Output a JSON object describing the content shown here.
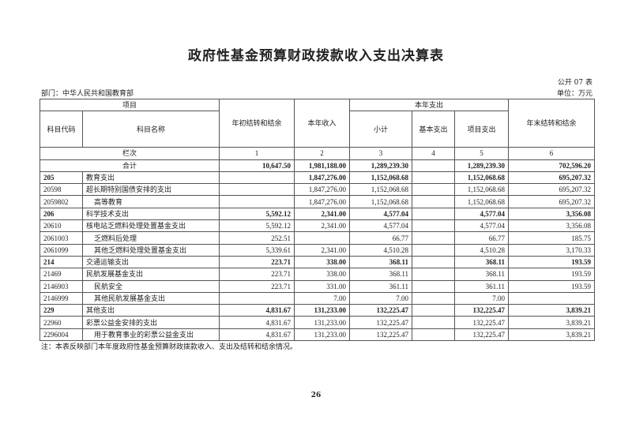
{
  "title": "政府性基金预算财政拨款收入支出决算表",
  "table_no": "公开 07 表",
  "department": "部门：中华人民共和国教育部",
  "unit": "单位：万元",
  "headers": {
    "item": "项目",
    "code": "科目代码",
    "name": "科目名称",
    "col1": "年初结转和结余",
    "col2": "本年收入",
    "expense": "本年支出",
    "col3": "小计",
    "col4": "基本支出",
    "col5": "项目支出",
    "col6": "年末结转和结余"
  },
  "column_numbers": {
    "label": "栏次",
    "nums": [
      "1",
      "2",
      "3",
      "4",
      "5",
      "6"
    ]
  },
  "total": {
    "label": "合计",
    "values": [
      "10,647.50",
      "1,981,188.00",
      "1,289,239.30",
      "",
      "1,289,239.30",
      "702,596.20"
    ]
  },
  "rows": [
    {
      "code": "205",
      "name": "教育支出",
      "level": 1,
      "values": [
        "",
        "1,847,276.00",
        "1,152,068.68",
        "",
        "1,152,068.68",
        "695,207.32"
      ]
    },
    {
      "code": "20598",
      "name": "超长期特别国债安排的支出",
      "level": 2,
      "values": [
        "",
        "1,847,276.00",
        "1,152,068.68",
        "",
        "1,152,068.68",
        "695,207.32"
      ]
    },
    {
      "code": "2059802",
      "name": "高等教育",
      "level": 3,
      "values": [
        "",
        "1,847,276.00",
        "1,152,068.68",
        "",
        "1,152,068.68",
        "695,207.32"
      ]
    },
    {
      "code": "206",
      "name": "科学技术支出",
      "level": 1,
      "values": [
        "5,592.12",
        "2,341.00",
        "4,577.04",
        "",
        "4,577.04",
        "3,356.08"
      ]
    },
    {
      "code": "20610",
      "name": "核电站乏燃料处理处置基金支出",
      "level": 2,
      "values": [
        "5,592.12",
        "2,341.00",
        "4,577.04",
        "",
        "4,577.04",
        "3,356.08"
      ]
    },
    {
      "code": "2061003",
      "name": "乏燃料后处理",
      "level": 3,
      "values": [
        "252.51",
        "",
        "66.77",
        "",
        "66.77",
        "185.75"
      ]
    },
    {
      "code": "2061099",
      "name": "其他乏燃料处理处置基金支出",
      "level": 3,
      "values": [
        "5,339.61",
        "2,341.00",
        "4,510.28",
        "",
        "4,510.28",
        "3,170.33"
      ]
    },
    {
      "code": "214",
      "name": "交通运输支出",
      "level": 1,
      "values": [
        "223.71",
        "338.00",
        "368.11",
        "",
        "368.11",
        "193.59"
      ]
    },
    {
      "code": "21469",
      "name": "民航发展基金支出",
      "level": 2,
      "values": [
        "223.71",
        "338.00",
        "368.11",
        "",
        "368.11",
        "193.59"
      ]
    },
    {
      "code": "2146903",
      "name": "民航安全",
      "level": 3,
      "values": [
        "223.71",
        "331.00",
        "361.11",
        "",
        "361.11",
        "193.59"
      ]
    },
    {
      "code": "2146999",
      "name": "其他民航发展基金支出",
      "level": 3,
      "values": [
        "",
        "7.00",
        "7.00",
        "",
        "7.00",
        ""
      ]
    },
    {
      "code": "229",
      "name": "其他支出",
      "level": 1,
      "values": [
        "4,831.67",
        "131,233.00",
        "132,225.47",
        "",
        "132,225.47",
        "3,839.21"
      ]
    },
    {
      "code": "22960",
      "name": "彩票公益金安排的支出",
      "level": 2,
      "values": [
        "4,831.67",
        "131,233.00",
        "132,225.47",
        "",
        "132,225.47",
        "3,839.21"
      ]
    },
    {
      "code": "2296004",
      "name": "用于教育事业的彩票公益金支出",
      "level": 3,
      "values": [
        "4,831.67",
        "131,233.00",
        "132,225.47",
        "",
        "132,225.47",
        "3,839.21"
      ]
    }
  ],
  "note": "注：本表反映部门本年度政府性基金预算财政拨款收入、支出及结转和结余情况。",
  "page_number": "26"
}
